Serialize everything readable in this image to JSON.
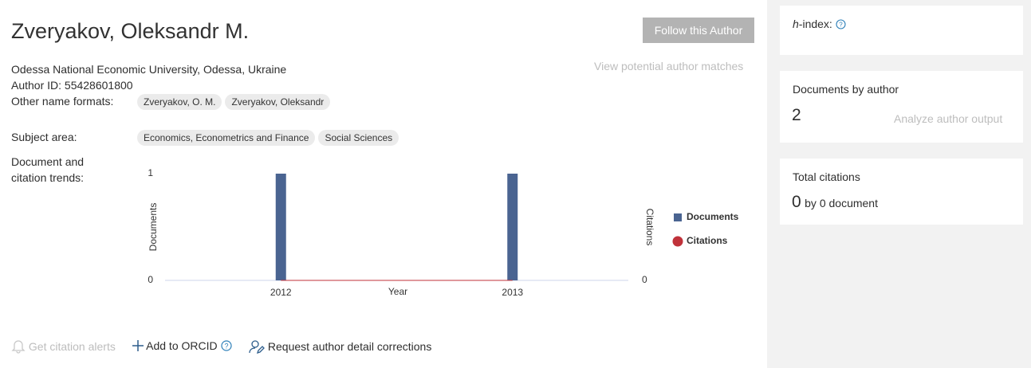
{
  "header": {
    "name": "Zveryakov, Oleksandr M.",
    "follow_button": "Follow this Author",
    "potential_matches": "View potential author matches",
    "affiliation": "Odessa National Economic University, Odessa, Ukraine",
    "author_id": "Author ID: 55428601800",
    "other_names_label": "Other name formats:",
    "other_names": [
      "Zveryakov, O. M.",
      "Zveryakov, Oleksandr"
    ],
    "subject_label": "Subject area:",
    "subjects": [
      "Economics, Econometrics and Finance",
      "Social Sciences"
    ],
    "trends_label": "Document and citation trends:"
  },
  "chart_data": {
    "type": "bar",
    "categories": [
      "2012",
      "2013"
    ],
    "x_label": "Year",
    "y_label": "Documents",
    "y2_label": "Citations",
    "series": [
      {
        "name": "Documents",
        "color": "#4a6491",
        "values": [
          1,
          1
        ]
      },
      {
        "name": "Citations",
        "color": "#c0323a",
        "values": [
          0,
          0
        ],
        "axis": "y2"
      }
    ],
    "ylim": [
      0,
      1
    ],
    "yticks": [
      0,
      1
    ],
    "y2lim": [
      0,
      1
    ],
    "y2ticks": [
      0
    ]
  },
  "actions": {
    "alerts": "Get citation alerts",
    "orcid": "Add to ORCID",
    "corrections": "Request author detail corrections"
  },
  "sidebar": {
    "h_index": {
      "italic": "h",
      "rest": "-index:"
    },
    "documents": {
      "label": "Documents by author",
      "value": 2,
      "link": "Analyze author output"
    },
    "citations": {
      "label": "Total citations",
      "value": 0,
      "text": "by 0 document"
    }
  }
}
